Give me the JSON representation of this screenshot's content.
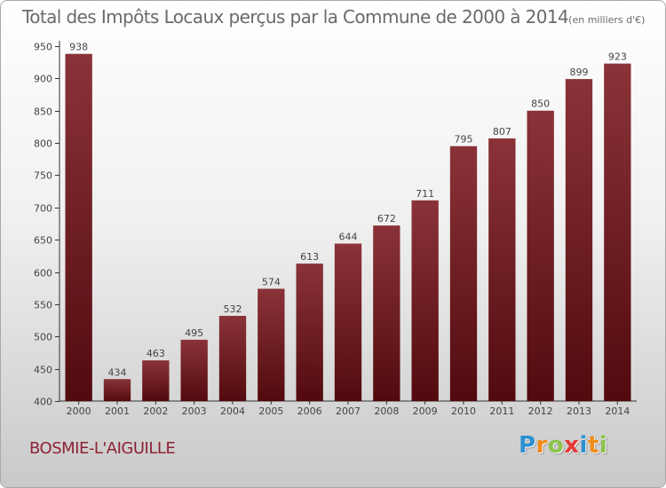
{
  "header": {
    "title": "Total des Impôts Locaux perçus par la Commune de 2000 à 2014",
    "unit": "(en milliers d'€)"
  },
  "footer": {
    "commune": "BOSMIE-L'AIGUILLE",
    "brand_letters": [
      "P",
      "r",
      "o",
      "x",
      "i",
      "t",
      "i"
    ],
    "brand_colors": [
      "#2e8fd1",
      "#f08c1a",
      "#8bc34a",
      "#e53935",
      "#2e8fd1",
      "#f08c1a",
      "#8bc34a"
    ]
  },
  "colors": {
    "bar_top": "#8a3339",
    "bar_bottom": "#520a0e",
    "axis": "#333333",
    "label": "#444444"
  },
  "chart_data": {
    "type": "bar",
    "title": "Total des Impôts Locaux perçus par la Commune de 2000 à 2014",
    "xlabel": "",
    "ylabel": "",
    "categories": [
      "2000",
      "2001",
      "2002",
      "2003",
      "2004",
      "2005",
      "2006",
      "2007",
      "2008",
      "2009",
      "2010",
      "2011",
      "2012",
      "2013",
      "2014"
    ],
    "values": [
      938,
      434,
      463,
      495,
      532,
      574,
      613,
      644,
      672,
      711,
      795,
      807,
      850,
      899,
      923
    ],
    "ylim": [
      400,
      950
    ],
    "yticks": [
      400,
      450,
      500,
      550,
      600,
      650,
      700,
      750,
      800,
      850,
      900,
      950
    ],
    "grid": false,
    "data_labels": true
  }
}
